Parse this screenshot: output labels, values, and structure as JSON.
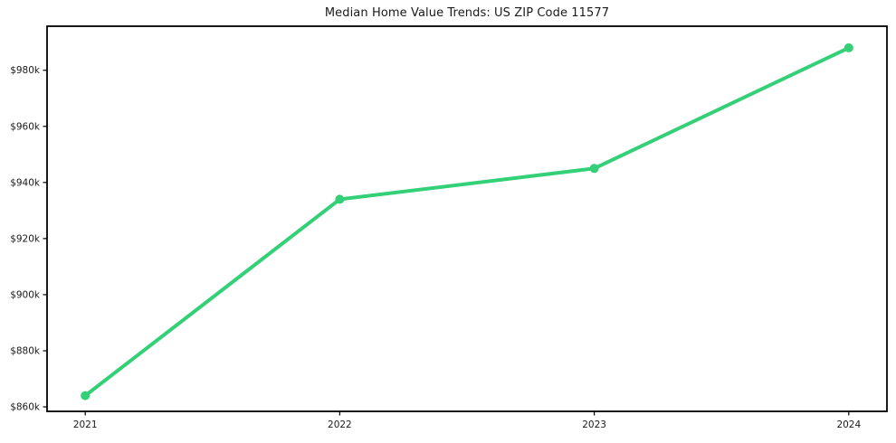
{
  "chart_data": {
    "type": "line",
    "title": "Median Home Value Trends: US ZIP Code 11577",
    "x": [
      2021,
      2022,
      2023,
      2024
    ],
    "x_tick_labels": [
      "2021",
      "2022",
      "2023",
      "2024"
    ],
    "values": [
      864000,
      934000,
      945000,
      988000
    ],
    "y_tick_values": [
      860000,
      880000,
      900000,
      920000,
      940000,
      960000,
      980000
    ],
    "y_tick_labels": [
      "$860k",
      "$880k",
      "$900k",
      "$920k",
      "$940k",
      "$960k",
      "$980k"
    ],
    "xlim": [
      2020.85,
      2024.15
    ],
    "ylim": [
      858400,
      995700
    ],
    "xlabel": "",
    "ylabel": "",
    "grid": false,
    "legend": "none",
    "line_color": "#33d077",
    "marker": "circle",
    "marker_radius": 5,
    "line_width": 4,
    "axis_color": "#000000",
    "text_color": "#1a1a1a",
    "background_color": "#ffffff"
  }
}
